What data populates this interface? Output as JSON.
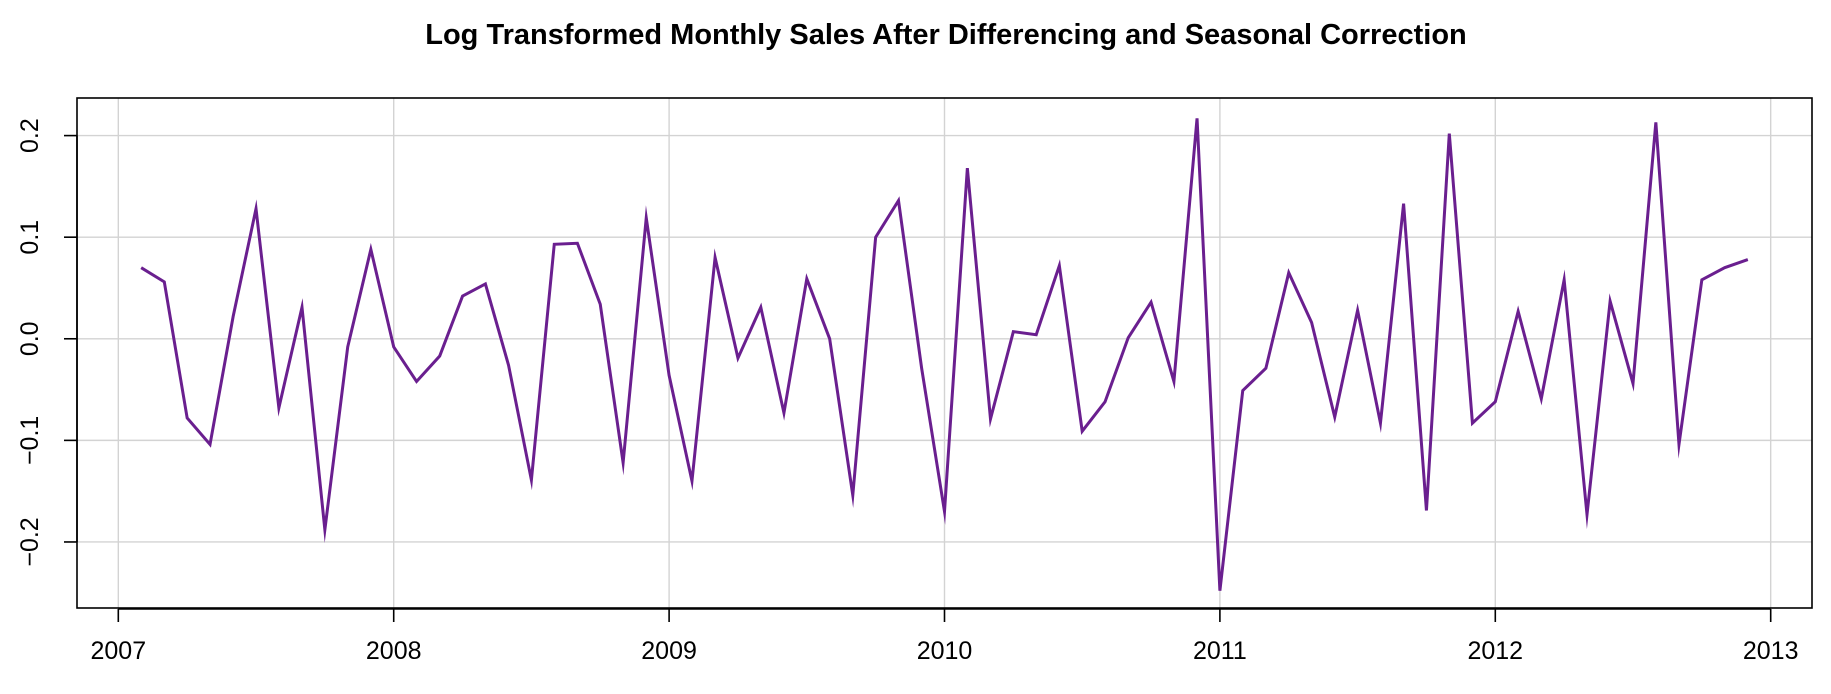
{
  "chart_data": {
    "type": "line",
    "title": "Log Transformed Monthly Sales After Differencing and Seasonal Correction",
    "xlabel": "",
    "ylabel": "",
    "xlim": [
      2006.85,
      2013.15
    ],
    "ylim": [
      -0.265,
      0.237
    ],
    "grid": true,
    "line_color": "#6a1f8f",
    "x_ticks": [
      2007,
      2008,
      2009,
      2010,
      2011,
      2012,
      2013
    ],
    "x_tick_labels": [
      "2007",
      "2008",
      "2009",
      "2010",
      "2011",
      "2012",
      "2013"
    ],
    "y_ticks": [
      -0.2,
      -0.1,
      0.0,
      0.1,
      0.2
    ],
    "y_tick_labels": [
      "−0.2",
      "−0.1",
      "0.0",
      "0.1",
      "0.2"
    ],
    "x": [
      2007.083,
      2007.167,
      2007.25,
      2007.333,
      2007.417,
      2007.5,
      2007.583,
      2007.667,
      2007.75,
      2007.833,
      2007.917,
      2008.0,
      2008.083,
      2008.167,
      2008.25,
      2008.333,
      2008.417,
      2008.5,
      2008.583,
      2008.667,
      2008.75,
      2008.833,
      2008.917,
      2009.0,
      2009.083,
      2009.167,
      2009.25,
      2009.333,
      2009.417,
      2009.5,
      2009.583,
      2009.667,
      2009.75,
      2009.833,
      2009.917,
      2010.0,
      2010.083,
      2010.167,
      2010.25,
      2010.333,
      2010.417,
      2010.5,
      2010.583,
      2010.667,
      2010.75,
      2010.833,
      2010.917,
      2011.0,
      2011.083,
      2011.167,
      2011.25,
      2011.333,
      2011.417,
      2011.5,
      2011.583,
      2011.667,
      2011.75,
      2011.833,
      2011.917,
      2012.0,
      2012.083,
      2012.167,
      2012.25,
      2012.333,
      2012.417,
      2012.5,
      2012.583,
      2012.667,
      2012.75,
      2012.833,
      2012.917
    ],
    "values": [
      0.07,
      0.056,
      -0.078,
      -0.104,
      0.022,
      0.128,
      -0.068,
      0.031,
      -0.188,
      -0.008,
      0.088,
      -0.008,
      -0.042,
      -0.017,
      0.042,
      0.054,
      -0.026,
      -0.139,
      0.093,
      0.094,
      0.034,
      -0.122,
      0.119,
      -0.036,
      -0.14,
      0.08,
      -0.019,
      0.031,
      -0.073,
      0.059,
      0.0,
      -0.154,
      0.1,
      0.136,
      -0.029,
      -0.17,
      0.168,
      -0.079,
      0.007,
      0.004,
      0.072,
      -0.091,
      -0.062,
      0.001,
      0.036,
      -0.042,
      0.217,
      -0.248,
      -0.051,
      -0.029,
      0.065,
      0.016,
      -0.077,
      0.028,
      -0.083,
      0.133,
      -0.169,
      0.202,
      -0.083,
      -0.062,
      0.027,
      -0.059,
      0.058,
      -0.173,
      0.037,
      -0.044,
      0.213,
      -0.104,
      0.058,
      0.07,
      0.078
    ]
  }
}
